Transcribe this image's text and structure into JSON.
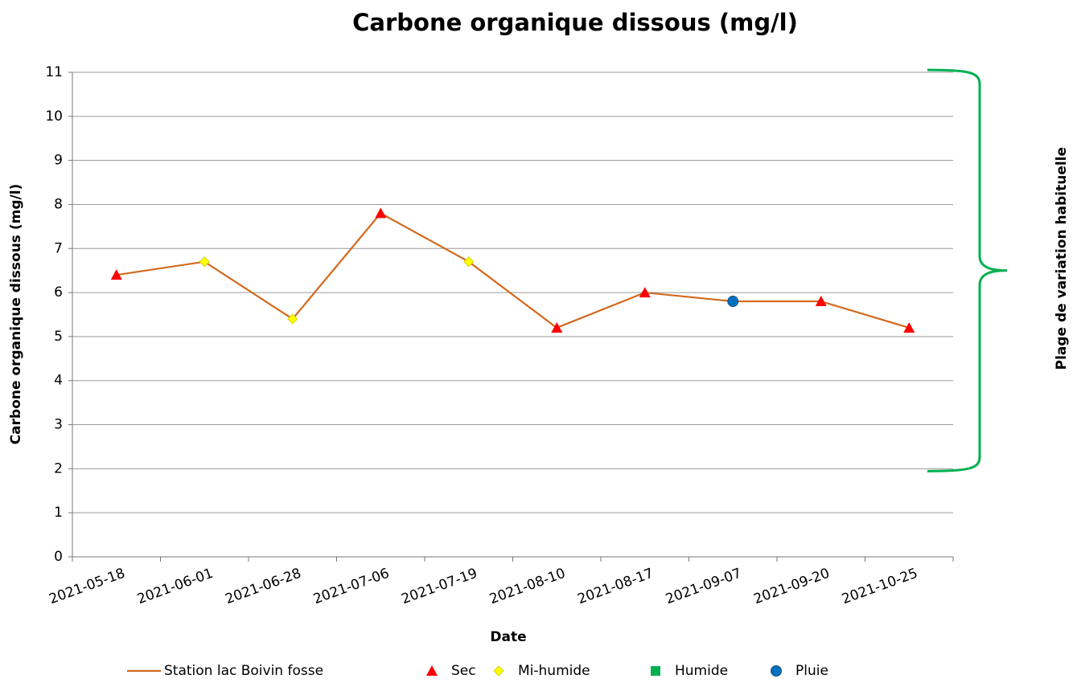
{
  "chart_data": {
    "type": "line",
    "title": "Carbone organique dissous (mg/l)",
    "xlabel": "Date",
    "ylabel": "Carbone organique dissous (mg/l)",
    "categories": [
      "2021-05-18",
      "2021-06-01",
      "2021-06-28",
      "2021-07-06",
      "2021-07-19",
      "2021-08-10",
      "2021-08-17",
      "2021-09-07",
      "2021-09-20",
      "2021-10-25"
    ],
    "series": [
      {
        "name": "Station lac Boivin fosse",
        "color": "#d2691e",
        "marker": "none",
        "line": true,
        "values": [
          6.4,
          6.7,
          5.4,
          7.8,
          6.7,
          5.2,
          6.0,
          5.8,
          5.8,
          5.2
        ]
      },
      {
        "name": "Sec",
        "color": "#ff0000",
        "marker": "triangle",
        "line": false,
        "values": [
          6.4,
          null,
          null,
          7.8,
          null,
          5.2,
          6.0,
          null,
          5.8,
          5.2
        ]
      },
      {
        "name": "Mi-humide",
        "color": "#ffff00",
        "marker": "diamond",
        "line": false,
        "values": [
          null,
          6.7,
          5.4,
          null,
          6.7,
          null,
          null,
          null,
          null,
          null
        ]
      },
      {
        "name": "Humide",
        "color": "#00b050",
        "marker": "square",
        "line": false,
        "values": [
          null,
          null,
          null,
          null,
          null,
          null,
          null,
          null,
          null,
          null
        ]
      },
      {
        "name": "Pluie",
        "color": "#0070c0",
        "marker": "circle",
        "line": false,
        "values": [
          null,
          null,
          null,
          null,
          null,
          null,
          null,
          5.8,
          null,
          null
        ]
      }
    ],
    "ylim": [
      0,
      11
    ],
    "yticks": [
      0,
      1,
      2,
      3,
      4,
      5,
      6,
      7,
      8,
      9,
      10,
      11
    ],
    "grid": true,
    "legend": "bottom",
    "annotation": {
      "text": "Plage de variation habituelle",
      "range": [
        2,
        11
      ],
      "color": "#00b050"
    }
  }
}
